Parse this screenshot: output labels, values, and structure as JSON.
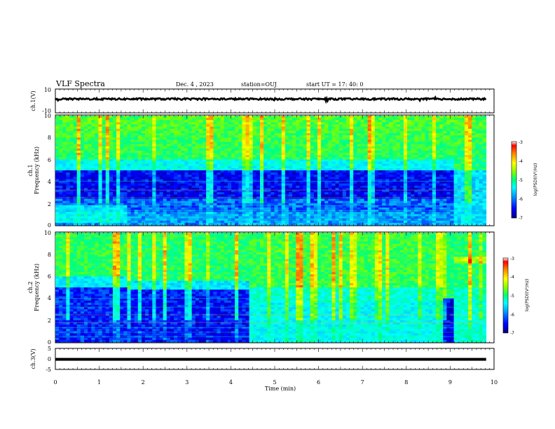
{
  "header": {
    "title": "VLF Spectra",
    "date": "Dec. 4 , 2023",
    "station": "station=OUJ",
    "start_ut": "start UT =  17: 40: 0"
  },
  "colors": {
    "spectrogram_scale": [
      "#00007f",
      "#0000ff",
      "#00aaff",
      "#00ffff",
      "#00ff7f",
      "#7fff00",
      "#ffff00",
      "#ff7f00",
      "#ff0000",
      "#ffffff"
    ]
  },
  "chart_data": [
    {
      "type": "line",
      "panel": "ch1-waveform",
      "ylabel": "ch.1(V)",
      "ylim": [
        -10,
        10
      ],
      "ytick_labels": [
        "10",
        "-10"
      ],
      "x_range_min": [
        0,
        9.82
      ],
      "trace": "dense black band centred near 2 V (amplitude about ±1 V) across 0–9.82 min"
    },
    {
      "type": "heatmap",
      "panel": "ch1-spectrogram",
      "ylabel": "ch.1\nFrequency (kHz)",
      "ylim": [
        0,
        10
      ],
      "ytick_labels": [
        "0",
        "2",
        "4",
        "6",
        "8",
        "10"
      ],
      "x_range_min": [
        0,
        9.82
      ],
      "colorbar": {
        "label": "log(PSD)(V²/Hz)",
        "range": [
          -7,
          -3
        ],
        "tick_labels": [
          "-3",
          "-4",
          "-5",
          "-6",
          "-7"
        ]
      },
      "segments": [
        {
          "t_start": 0.0,
          "t_end": 1.65,
          "note": "bright yellow-green above 6 kHz, blue 2.5–5 kHz, narrowband lines near 0.5–2 kHz"
        },
        {
          "t_start": 1.65,
          "t_end": 9.1,
          "note": "green-yellow above 6 kHz with vertical impulsive streaks, dark blue 1–5 kHz"
        },
        {
          "t_start": 9.1,
          "t_end": 9.82,
          "note": "uniform cyan/blue below 5 kHz, green above"
        }
      ]
    },
    {
      "type": "heatmap",
      "panel": "ch2-spectrogram",
      "ylabel": "ch.2\nFrequency (kHz)",
      "ylim": [
        0,
        10
      ],
      "ytick_labels": [
        "0",
        "2",
        "4",
        "6",
        "8",
        "10"
      ],
      "x_range_min": [
        0,
        9.82
      ],
      "colorbar": {
        "label": "log(PSD)(V²/Hz)",
        "range": [
          -7,
          -3
        ],
        "tick_labels": [
          "-3",
          "-4",
          "-5",
          "-6",
          "-7"
        ]
      },
      "segments": [
        {
          "t_start": 0.0,
          "t_end": 1.65,
          "note": "yellow-green above 6 kHz, blue 1–5 kHz with red narrowband lines"
        },
        {
          "t_start": 1.65,
          "t_end": 4.4,
          "note": "green-yellow above 5 kHz with streaks, blue below"
        },
        {
          "t_start": 4.4,
          "t_end": 8.8,
          "note": "elevated broadband: green/cyan 0–4 kHz, yellow-green above"
        },
        {
          "t_start": 8.8,
          "t_end": 9.1,
          "note": "dark blue gap 0–4 kHz"
        },
        {
          "t_start": 9.1,
          "t_end": 9.82,
          "note": "green with yellow band near 7.5 kHz"
        }
      ]
    },
    {
      "type": "line",
      "panel": "ch3-waveform",
      "ylabel": "ch.3(V)",
      "ylim": [
        -5,
        5
      ],
      "ytick_labels": [
        "5",
        "0",
        "-5"
      ],
      "x_range_min": [
        0,
        9.82
      ],
      "trace": "thick black band near -0.5 V across 0–9.82 min"
    },
    {
      "type": "axis",
      "panel": "time-axis",
      "xlabel": "Time (min)",
      "xlim": [
        0,
        10
      ],
      "xtick_labels": [
        "0",
        "1",
        "2",
        "3",
        "4",
        "5",
        "6",
        "7",
        "8",
        "9",
        "10"
      ]
    }
  ]
}
